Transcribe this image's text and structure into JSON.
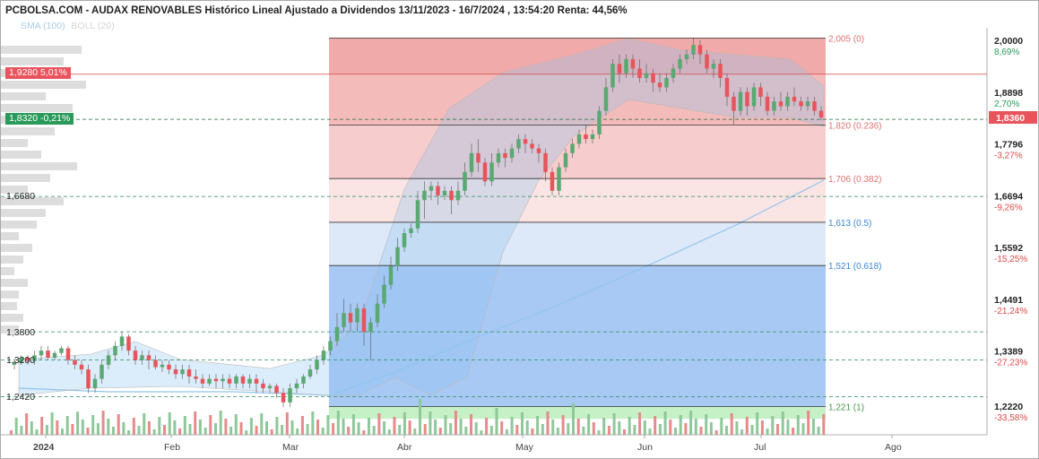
{
  "title": "PCBOLSA.COM - AUDAX RENOVABLES Histórico Lineal Ajustado a Dividendos 13/11/2023 - 16/7/2024 , 13:54:20 Renta: 44,56%",
  "legend": {
    "sma": "SMA (100)",
    "boll": "BOLL (20)"
  },
  "left_labels": {
    "box_red": "1,9280  5,01%",
    "box_green": "1,8320  -0,21%",
    "l1668": "1,6680",
    "l138": "1,3800",
    "l132": "1,3200",
    "l1242": "1,2420"
  },
  "colors": {
    "up": "#5aa872",
    "down": "#e8545c",
    "sma": "#90c4ee",
    "boll": "#b8b8b8",
    "axis_pos": "#2a9a5a",
    "axis_neg": "#e04848",
    "fib_label_red": "#e07070",
    "fib_label_blue": "#3a86d8"
  },
  "chart_data": {
    "type": "candlestick",
    "title": "PCBOLSA.COM - AUDAX RENOVABLES Histórico Lineal Ajustado a Dividendos 13/11/2023 - 16/7/2024 , 13:54:20 Renta: 44,56%",
    "x_labels": [
      "2024",
      "Feb",
      "Mar",
      "Abr",
      "May",
      "Jun",
      "Jul",
      "Ago"
    ],
    "y_axis": [
      {
        "price": "2,0000",
        "pct": "8,69%"
      },
      {
        "price": "1,8898",
        "pct": "2,70%"
      },
      {
        "price": "1,7796",
        "pct": "-3,27%"
      },
      {
        "price": "1,6694",
        "pct": "-9,26%"
      },
      {
        "price": "1,5592",
        "pct": "-15,25%"
      },
      {
        "price": "1,4491",
        "pct": "-21,24%"
      },
      {
        "price": "1,3389",
        "pct": "-27,23%"
      },
      {
        "price": "1,2220",
        "pct": "-33,58%"
      }
    ],
    "last_price": "1,8360",
    "ylim": [
      1.2,
      2.02
    ],
    "fibonacci": [
      {
        "price": 2.005,
        "label": "2,005 (0)"
      },
      {
        "price": 1.82,
        "label": "1,820 (0.236)"
      },
      {
        "price": 1.706,
        "label": "1,706 (0.382)"
      },
      {
        "price": 1.613,
        "label": "1,613 (0.5)"
      },
      {
        "price": 1.521,
        "label": "1,521 (0.618)"
      },
      {
        "price": 1.221,
        "label": "1,221 (1)"
      }
    ],
    "horizontal_levels": [
      1.928,
      1.832,
      1.668,
      1.38,
      1.32,
      1.242
    ],
    "candles": [
      [
        1.31,
        1.315,
        1.3,
        1.32
      ],
      [
        1.315,
        1.325,
        1.31,
        1.33
      ],
      [
        1.325,
        1.318,
        1.31,
        1.33
      ],
      [
        1.318,
        1.33,
        1.31,
        1.34
      ],
      [
        1.33,
        1.34,
        1.32,
        1.35
      ],
      [
        1.34,
        1.325,
        1.32,
        1.35
      ],
      [
        1.325,
        1.335,
        1.32,
        1.34
      ],
      [
        1.335,
        1.345,
        1.33,
        1.35
      ],
      [
        1.345,
        1.32,
        1.31,
        1.35
      ],
      [
        1.32,
        1.31,
        1.3,
        1.33
      ],
      [
        1.31,
        1.3,
        1.29,
        1.32
      ],
      [
        1.3,
        1.26,
        1.25,
        1.31
      ],
      [
        1.26,
        1.28,
        1.25,
        1.29
      ],
      [
        1.28,
        1.31,
        1.27,
        1.32
      ],
      [
        1.31,
        1.33,
        1.3,
        1.34
      ],
      [
        1.33,
        1.35,
        1.32,
        1.36
      ],
      [
        1.35,
        1.37,
        1.34,
        1.38
      ],
      [
        1.37,
        1.34,
        1.33,
        1.375
      ],
      [
        1.34,
        1.32,
        1.31,
        1.35
      ],
      [
        1.32,
        1.33,
        1.31,
        1.34
      ],
      [
        1.33,
        1.32,
        1.3,
        1.34
      ],
      [
        1.32,
        1.305,
        1.3,
        1.33
      ],
      [
        1.305,
        1.31,
        1.295,
        1.32
      ],
      [
        1.31,
        1.3,
        1.29,
        1.32
      ],
      [
        1.3,
        1.29,
        1.28,
        1.31
      ],
      [
        1.29,
        1.3,
        1.28,
        1.31
      ],
      [
        1.3,
        1.285,
        1.27,
        1.31
      ],
      [
        1.285,
        1.28,
        1.27,
        1.3
      ],
      [
        1.28,
        1.27,
        1.26,
        1.29
      ],
      [
        1.27,
        1.28,
        1.265,
        1.29
      ],
      [
        1.28,
        1.275,
        1.26,
        1.29
      ],
      [
        1.275,
        1.28,
        1.26,
        1.29
      ],
      [
        1.28,
        1.27,
        1.26,
        1.29
      ],
      [
        1.27,
        1.285,
        1.26,
        1.29
      ],
      [
        1.285,
        1.27,
        1.26,
        1.29
      ],
      [
        1.27,
        1.28,
        1.26,
        1.29
      ],
      [
        1.28,
        1.27,
        1.25,
        1.29
      ],
      [
        1.27,
        1.26,
        1.25,
        1.28
      ],
      [
        1.26,
        1.265,
        1.25,
        1.27
      ],
      [
        1.265,
        1.25,
        1.24,
        1.27
      ],
      [
        1.25,
        1.23,
        1.22,
        1.26
      ],
      [
        1.23,
        1.26,
        1.22,
        1.27
      ],
      [
        1.26,
        1.27,
        1.25,
        1.28
      ],
      [
        1.27,
        1.285,
        1.26,
        1.29
      ],
      [
        1.285,
        1.3,
        1.28,
        1.31
      ],
      [
        1.3,
        1.32,
        1.29,
        1.33
      ],
      [
        1.32,
        1.34,
        1.31,
        1.35
      ],
      [
        1.34,
        1.36,
        1.33,
        1.37
      ],
      [
        1.36,
        1.39,
        1.35,
        1.42
      ],
      [
        1.39,
        1.42,
        1.38,
        1.45
      ],
      [
        1.42,
        1.4,
        1.38,
        1.44
      ],
      [
        1.4,
        1.43,
        1.38,
        1.44
      ],
      [
        1.43,
        1.38,
        1.35,
        1.44
      ],
      [
        1.38,
        1.4,
        1.32,
        1.41
      ],
      [
        1.4,
        1.44,
        1.39,
        1.46
      ],
      [
        1.44,
        1.48,
        1.43,
        1.5
      ],
      [
        1.48,
        1.52,
        1.47,
        1.54
      ],
      [
        1.52,
        1.56,
        1.51,
        1.58
      ],
      [
        1.56,
        1.59,
        1.55,
        1.6
      ],
      [
        1.59,
        1.6,
        1.58,
        1.61
      ],
      [
        1.6,
        1.66,
        1.59,
        1.68
      ],
      [
        1.66,
        1.68,
        1.62,
        1.7
      ],
      [
        1.68,
        1.69,
        1.66,
        1.7
      ],
      [
        1.69,
        1.67,
        1.65,
        1.7
      ],
      [
        1.67,
        1.68,
        1.66,
        1.69
      ],
      [
        1.68,
        1.66,
        1.63,
        1.69
      ],
      [
        1.66,
        1.68,
        1.65,
        1.7
      ],
      [
        1.68,
        1.72,
        1.67,
        1.74
      ],
      [
        1.72,
        1.76,
        1.71,
        1.78
      ],
      [
        1.76,
        1.74,
        1.72,
        1.79
      ],
      [
        1.74,
        1.7,
        1.69,
        1.75
      ],
      [
        1.7,
        1.74,
        1.69,
        1.76
      ],
      [
        1.74,
        1.76,
        1.73,
        1.77
      ],
      [
        1.76,
        1.75,
        1.73,
        1.77
      ],
      [
        1.75,
        1.77,
        1.74,
        1.78
      ],
      [
        1.77,
        1.79,
        1.76,
        1.8
      ],
      [
        1.79,
        1.78,
        1.76,
        1.8
      ],
      [
        1.78,
        1.77,
        1.76,
        1.79
      ],
      [
        1.77,
        1.76,
        1.74,
        1.78
      ],
      [
        1.76,
        1.72,
        1.7,
        1.77
      ],
      [
        1.72,
        1.68,
        1.67,
        1.73
      ],
      [
        1.68,
        1.73,
        1.67,
        1.74
      ],
      [
        1.73,
        1.76,
        1.72,
        1.77
      ],
      [
        1.76,
        1.78,
        1.75,
        1.79
      ],
      [
        1.78,
        1.8,
        1.77,
        1.81
      ],
      [
        1.8,
        1.79,
        1.78,
        1.82
      ],
      [
        1.79,
        1.8,
        1.78,
        1.81
      ],
      [
        1.8,
        1.85,
        1.79,
        1.86
      ],
      [
        1.85,
        1.9,
        1.84,
        1.92
      ],
      [
        1.9,
        1.95,
        1.89,
        1.96
      ],
      [
        1.95,
        1.93,
        1.91,
        1.97
      ],
      [
        1.93,
        1.96,
        1.92,
        1.97
      ],
      [
        1.96,
        1.94,
        1.92,
        1.97
      ],
      [
        1.94,
        1.92,
        1.91,
        1.96
      ],
      [
        1.92,
        1.93,
        1.91,
        1.95
      ],
      [
        1.93,
        1.91,
        1.89,
        1.94
      ],
      [
        1.91,
        1.9,
        1.89,
        1.93
      ],
      [
        1.9,
        1.92,
        1.89,
        1.93
      ],
      [
        1.92,
        1.94,
        1.91,
        1.95
      ],
      [
        1.94,
        1.96,
        1.93,
        1.97
      ],
      [
        1.96,
        1.97,
        1.95,
        1.98
      ],
      [
        1.97,
        1.99,
        1.96,
        2.005
      ],
      [
        1.99,
        1.97,
        1.95,
        2.0
      ],
      [
        1.97,
        1.94,
        1.93,
        1.98
      ],
      [
        1.94,
        1.95,
        1.92,
        1.96
      ],
      [
        1.95,
        1.92,
        1.9,
        1.96
      ],
      [
        1.92,
        1.88,
        1.86,
        1.93
      ],
      [
        1.88,
        1.85,
        1.82,
        1.89
      ],
      [
        1.85,
        1.89,
        1.84,
        1.9
      ],
      [
        1.89,
        1.86,
        1.84,
        1.9
      ],
      [
        1.86,
        1.9,
        1.85,
        1.91
      ],
      [
        1.9,
        1.88,
        1.86,
        1.91
      ],
      [
        1.88,
        1.85,
        1.84,
        1.89
      ],
      [
        1.85,
        1.87,
        1.84,
        1.88
      ],
      [
        1.87,
        1.86,
        1.85,
        1.89
      ],
      [
        1.86,
        1.88,
        1.85,
        1.89
      ],
      [
        1.88,
        1.87,
        1.86,
        1.9
      ],
      [
        1.87,
        1.86,
        1.85,
        1.88
      ],
      [
        1.86,
        1.87,
        1.85,
        1.88
      ],
      [
        1.87,
        1.85,
        1.84,
        1.88
      ],
      [
        1.85,
        1.836,
        1.83,
        1.86
      ]
    ]
  }
}
